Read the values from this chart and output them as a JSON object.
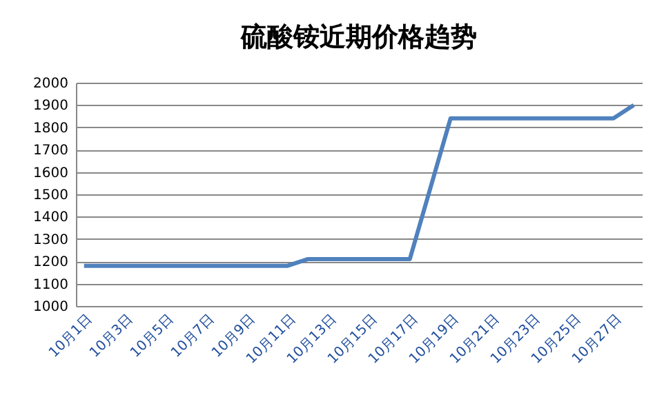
{
  "chart_data": {
    "type": "line",
    "title": "硫酸铵近期价格趋势",
    "categories": [
      "10月1日",
      null,
      "10月3日",
      null,
      "10月5日",
      null,
      "10月7日",
      null,
      "10月9日",
      null,
      "10月11日",
      null,
      "10月13日",
      null,
      "10月15日",
      null,
      "10月17日",
      null,
      "10月19日",
      null,
      "10月21日",
      null,
      "10月23日",
      null,
      "10月25日",
      null,
      "10月27日",
      null
    ],
    "series": [
      {
        "color": "#4f81bd",
        "values": [
          1180,
          1180,
          1180,
          1180,
          1180,
          1180,
          1180,
          1180,
          1180,
          1180,
          1180,
          1210,
          1210,
          1210,
          1210,
          1210,
          1210,
          1525,
          1840,
          1840,
          1840,
          1840,
          1840,
          1840,
          1840,
          1840,
          1840,
          1900
        ]
      }
    ],
    "ylim": [
      1000,
      2000
    ],
    "yticks": [
      1000,
      1100,
      1200,
      1300,
      1400,
      1500,
      1600,
      1700,
      1800,
      1900,
      2000
    ],
    "grid": "y",
    "marker": "none",
    "line_style": "solid"
  }
}
